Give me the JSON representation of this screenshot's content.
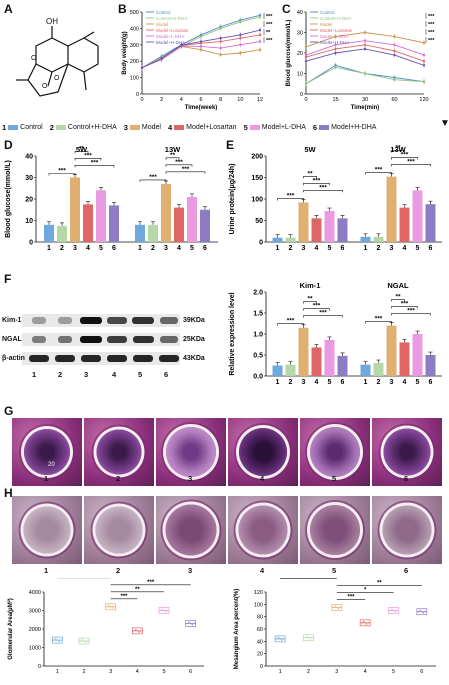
{
  "panels": {
    "A": "A",
    "B": "B",
    "C": "C",
    "D": "D",
    "E": "E",
    "F": "F",
    "G": "G",
    "H": "H"
  },
  "legend": [
    {
      "num": "1",
      "label": "Control",
      "color": "#6fa8dc"
    },
    {
      "num": "2",
      "label": "Control+H-DHA",
      "color": "#b6d7a8"
    },
    {
      "num": "3",
      "label": "Model",
      "color": "#e0b070"
    },
    {
      "num": "4",
      "label": "Model+Losartan",
      "color": "#e06666"
    },
    {
      "num": "5",
      "label": "Model+L-DHA",
      "color": "#e99ae0"
    },
    {
      "num": "6",
      "label": "Model+H-DHA",
      "color": "#8e7cc3"
    }
  ],
  "molecule": {
    "oh_label": "OH"
  },
  "chart_data": [
    {
      "id": "B",
      "type": "line",
      "xlabel": "Time(week)",
      "ylabel": "Body weight(g)",
      "x": [
        0,
        2,
        4,
        6,
        8,
        10,
        12
      ],
      "xticks": [
        "0",
        "2",
        "4",
        "6",
        "8",
        "10",
        "12"
      ],
      "ylim": [
        0,
        500
      ],
      "yticks": [
        "0",
        "100",
        "200",
        "300",
        "400",
        "500"
      ],
      "legend": [
        "Control",
        "Control+H-DHA",
        "Model",
        "Model+Losartan",
        "Model+L-DHA",
        "Model+H-DHA"
      ],
      "series": [
        {
          "name": "Control",
          "color": "#4a86c8",
          "values": [
            160,
            230,
            300,
            360,
            410,
            450,
            480
          ]
        },
        {
          "name": "Control+H-DHA",
          "color": "#93c47d",
          "values": [
            160,
            225,
            290,
            350,
            400,
            440,
            470
          ]
        },
        {
          "name": "Model",
          "color": "#c9954a",
          "values": [
            160,
            210,
            290,
            270,
            240,
            250,
            270
          ]
        },
        {
          "name": "Model+Losartan",
          "color": "#e06666",
          "values": [
            160,
            215,
            295,
            310,
            320,
            340,
            360
          ]
        },
        {
          "name": "Model+L-DHA",
          "color": "#d36fcf",
          "values": [
            160,
            212,
            292,
            290,
            280,
            300,
            320
          ]
        },
        {
          "name": "Model+H-DHA",
          "color": "#6a55b5",
          "values": [
            160,
            218,
            298,
            320,
            340,
            360,
            390
          ]
        }
      ],
      "sig": [
        "***",
        "***",
        "**",
        "***"
      ]
    },
    {
      "id": "C",
      "type": "line",
      "xlabel": "Time(min)",
      "ylabel": "Blood glucose(mmol/L)",
      "xticks": [
        "0",
        "15",
        "30",
        "60",
        "120"
      ],
      "ylim": [
        0,
        40
      ],
      "yticks": [
        "0",
        "10",
        "20",
        "30",
        "40"
      ],
      "legend": [
        "Control",
        "Control+H-DHA",
        "Model",
        "Model+Losartan",
        "Model+L-DHA",
        "Model+H-DHA"
      ],
      "series": [
        {
          "name": "Control",
          "color": "#4a86c8",
          "values": [
            5,
            14,
            10,
            8,
            6
          ]
        },
        {
          "name": "Control+H-DHA",
          "color": "#93c47d",
          "values": [
            5,
            13,
            10,
            7,
            6
          ]
        },
        {
          "name": "Model",
          "color": "#c9954a",
          "values": [
            23,
            28,
            30,
            28,
            25
          ]
        },
        {
          "name": "Model+Losartan",
          "color": "#e06666",
          "values": [
            18,
            22,
            24,
            21,
            16
          ]
        },
        {
          "name": "Model+L-DHA",
          "color": "#d36fcf",
          "values": [
            19,
            24,
            26,
            24,
            19
          ]
        },
        {
          "name": "Model+H-DHA",
          "color": "#6a55b5",
          "values": [
            16,
            20,
            22,
            19,
            14
          ]
        }
      ],
      "sig": [
        "***",
        "***",
        "***",
        "***"
      ]
    },
    {
      "id": "D",
      "type": "bar",
      "ylabel": "Blood glucose(mmol/L)",
      "ylim": [
        0,
        40
      ],
      "yticks": [
        "0",
        "10",
        "20",
        "30",
        "40"
      ],
      "groups": [
        {
          "label": "5W",
          "categories": [
            "1",
            "2",
            "3",
            "4",
            "5",
            "6"
          ],
          "values": [
            8,
            7.5,
            30,
            17.5,
            24,
            17
          ]
        },
        {
          "label": "13W",
          "categories": [
            "1",
            "2",
            "3",
            "4",
            "5",
            "6"
          ],
          "values": [
            8,
            8,
            27,
            16,
            21,
            15
          ]
        }
      ],
      "sig": [
        "***",
        "**",
        "***",
        "***"
      ]
    },
    {
      "id": "E",
      "type": "bar",
      "ylabel": "Urine protein(μg/24h)",
      "ylim": [
        0,
        200
      ],
      "yticks": [
        "0",
        "50",
        "100",
        "150",
        "200"
      ],
      "groups": [
        {
          "label": "5W",
          "categories": [
            "1",
            "2",
            "3",
            "4",
            "5",
            "6"
          ],
          "values": [
            10,
            10,
            92,
            55,
            72,
            55
          ]
        },
        {
          "label": "13W",
          "categories": [
            "1",
            "2",
            "3",
            "4",
            "5",
            "6"
          ],
          "values": [
            12,
            12,
            152,
            80,
            120,
            88
          ]
        }
      ],
      "sig": [
        "***",
        "**",
        "***",
        "***"
      ]
    },
    {
      "id": "F",
      "type": "bar",
      "ylabel": "Relative expression level",
      "ylim": [
        0,
        2.0
      ],
      "yticks": [
        "0.0",
        "0.5",
        "1.0",
        "1.5",
        "2.0"
      ],
      "groups": [
        {
          "label": "Kim-1",
          "categories": [
            "1",
            "2",
            "3",
            "4",
            "5",
            "6"
          ],
          "values": [
            0.25,
            0.27,
            1.15,
            0.68,
            0.86,
            0.48
          ]
        },
        {
          "label": "NGAL",
          "categories": [
            "1",
            "2",
            "3",
            "4",
            "5",
            "6"
          ],
          "values": [
            0.27,
            0.31,
            1.2,
            0.8,
            1.0,
            0.5
          ]
        }
      ],
      "sig": [
        "***",
        "**",
        "***",
        "***"
      ]
    },
    {
      "id": "H1",
      "type": "scatter",
      "ylabel": "Glomerular Area(μM²)",
      "ylim": [
        0,
        4000
      ],
      "yticks": [
        "0",
        "1000",
        "2000",
        "3000",
        "4000"
      ],
      "categories": [
        "1",
        "2",
        "3",
        "4",
        "5",
        "6"
      ],
      "values": [
        1400,
        1350,
        3200,
        1900,
        3000,
        2300
      ],
      "sig": [
        "***",
        "**",
        "***",
        "***"
      ]
    },
    {
      "id": "H2",
      "type": "scatter",
      "ylabel": "Mesangium Area percent(%)",
      "ylim": [
        0,
        120
      ],
      "yticks": [
        "0",
        "20",
        "40",
        "60",
        "80",
        "100",
        "120"
      ],
      "categories": [
        "1",
        "2",
        "3",
        "4",
        "5",
        "6"
      ],
      "values": [
        44,
        46,
        95,
        70,
        90,
        88
      ],
      "sig": [
        "***",
        "*",
        "**",
        "**"
      ]
    }
  ],
  "blot": {
    "rows": [
      {
        "name": "Kim-1",
        "kda": "39KDa"
      },
      {
        "name": "NGAL",
        "kda": "25KDa"
      },
      {
        "name": "β-actin",
        "kda": "43KDa"
      }
    ],
    "lanes": [
      "1",
      "2",
      "3",
      "4",
      "5",
      "6"
    ]
  },
  "histology_labels": [
    "1",
    "2",
    "3",
    "4",
    "5",
    "6"
  ],
  "scalebar_text": "20"
}
